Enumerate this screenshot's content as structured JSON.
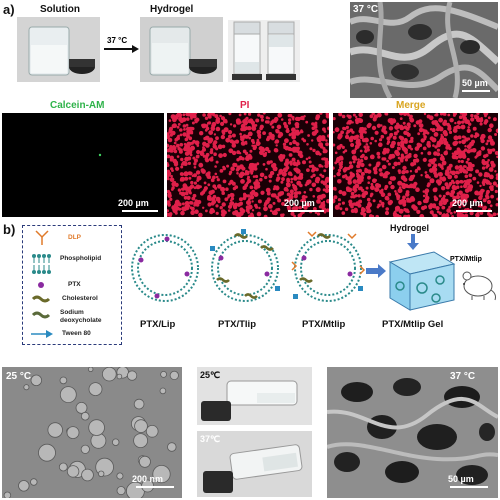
{
  "panel_a": {
    "letter": "a)",
    "top_labels": {
      "solution": "Solution",
      "temperature_arrow": "37 °C",
      "hydrogel": "Hydrogel"
    },
    "sem_temp": "37 °C",
    "sem_scale": "50 µm",
    "fluorescence": {
      "calcein": "Calcein-AM",
      "pi": "PI",
      "merge": "Merge",
      "scale": "200 µm"
    },
    "colors": {
      "calcein": "#2fb34a",
      "pi": "#e0204a",
      "merge": "#d9a520"
    }
  },
  "panel_b": {
    "letter": "b)",
    "legend": [
      "DLP",
      "Phospholipid",
      "PTX",
      "Cholesterol",
      "Sodium deoxycholate",
      "Tween 80"
    ],
    "legend_colors": {
      "dlp": "#e07a2a",
      "phospholipid": "#2a8a8a",
      "ptx": "#8a2aa0",
      "cholesterol": "#6a6a2a",
      "tween": "#2a8ac0"
    },
    "liposomes": [
      "PTX/Lip",
      "PTX/Tlip",
      "PTX/Mtlip",
      "PTX/Mtlip Gel"
    ],
    "hydrogel_label": "Hydrogel",
    "inset_label": "PTX/Mtlip"
  },
  "panel_c": {
    "tem_temp": "25 °C",
    "tem_scale": "200 nm",
    "vial_top_temp": "25℃",
    "vial_bottom_temp": "37℃",
    "sem_temp": "37 °C",
    "sem_scale": "50 µm"
  }
}
